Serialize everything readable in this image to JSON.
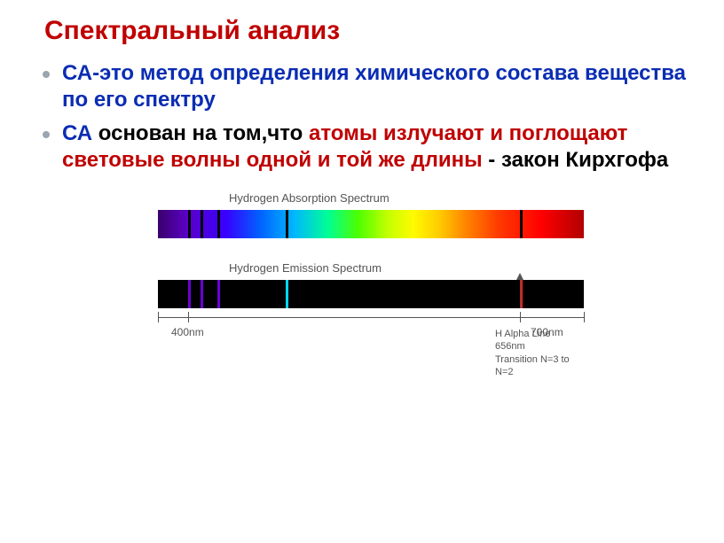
{
  "title": "Спектральный анализ",
  "bullets": [
    {
      "parts": [
        {
          "text": "СА-это",
          "color_class": "blue"
        },
        {
          "text": " метод определения химического состава вещества по его спектру",
          "color_class": "blue"
        }
      ]
    },
    {
      "parts": [
        {
          "text": "СА",
          "color_class": "blue"
        },
        {
          "text": " основан на том,что ",
          "color_class": "black"
        },
        {
          "text": "атомы излучают и поглощают световые волны одной и той же длины",
          "color_class": "red"
        },
        {
          "text": " - закон Кирхгофа",
          "color_class": "black"
        }
      ]
    }
  ],
  "diagram": {
    "absorption_label": "Hydrogen Absorption Spectrum",
    "emission_label": "Hydrogen Emission Spectrum",
    "absorption_lines": [
      {
        "left_pct": 7,
        "color": "#000000"
      },
      {
        "left_pct": 10,
        "color": "#000000"
      },
      {
        "left_pct": 14,
        "color": "#000000"
      },
      {
        "left_pct": 30,
        "color": "#000000"
      },
      {
        "left_pct": 85,
        "color": "#000000"
      }
    ],
    "emission_lines": [
      {
        "left_pct": 7,
        "color": "#6c00d6"
      },
      {
        "left_pct": 10,
        "color": "#6c00d6"
      },
      {
        "left_pct": 14,
        "color": "#6c00d6"
      },
      {
        "left_pct": 30,
        "color": "#00d6ff"
      },
      {
        "left_pct": 85,
        "color": "#ff1a1a"
      }
    ],
    "axis": {
      "ticks_pct": [
        0,
        7,
        85,
        100
      ],
      "label_400": "400nm",
      "label_700": "700nm",
      "h_alpha_pct": 85,
      "h_alpha_line1": "H Alpha Line",
      "h_alpha_line2": "656nm",
      "h_alpha_line3": "Transition N=3 to N=2"
    }
  }
}
